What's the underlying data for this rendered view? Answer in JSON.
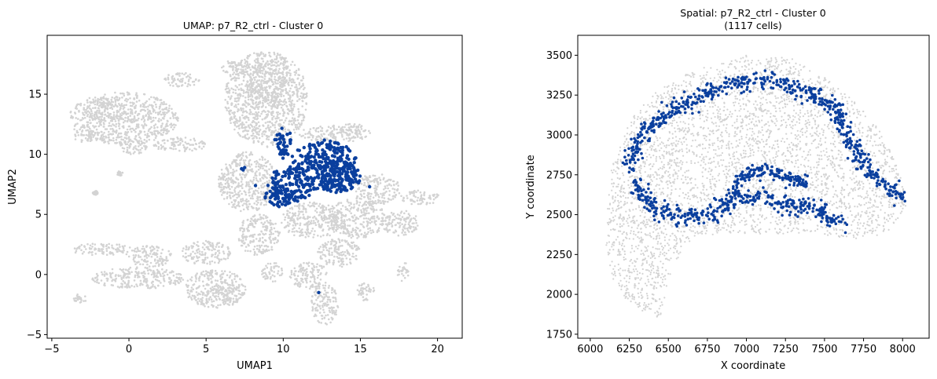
{
  "colors": {
    "background_points": "#d3d3d3",
    "highlight_points": "#0a3f9e",
    "axes": "#000000"
  },
  "chart_data": [
    {
      "type": "scatter",
      "title": "UMAP: p7_R2_ctrl - Cluster 0",
      "subtitle": "",
      "xlabel": "UMAP1",
      "ylabel": "UMAP2",
      "xlim": [
        -5.3,
        21.6
      ],
      "ylim": [
        -5.3,
        19.9
      ],
      "xticks": [
        -5,
        0,
        5,
        10,
        15,
        20
      ],
      "yticks": [
        -5,
        0,
        5,
        10,
        15
      ],
      "grid": false,
      "legend": "none",
      "background_series": {
        "color": "#d3d3d3",
        "regions": [
          {
            "x": [
              -3.9,
              3.2
            ],
            "y": [
              10.8,
              15.2
            ]
          },
          {
            "x": [
              -2.8,
              -0.2
            ],
            "y": [
              12.6,
              14.8
            ]
          },
          {
            "x": [
              -3.6,
              -2.2
            ],
            "y": [
              11.0,
              12.0
            ]
          },
          {
            "x": [
              -0.6,
              1.2
            ],
            "y": [
              10.0,
              11.2
            ]
          },
          {
            "x": [
              2.2,
              4.6
            ],
            "y": [
              15.6,
              16.8
            ]
          },
          {
            "x": [
              6.0,
              8.0
            ],
            "y": [
              16.6,
              17.9
            ]
          },
          {
            "x": [
              6.2,
              11.6
            ],
            "y": [
              10.6,
              18.6
            ]
          },
          {
            "x": [
              7.6,
              10.2
            ],
            "y": [
              13.8,
              17.6
            ]
          },
          {
            "x": [
              1.6,
              5.0
            ],
            "y": [
              10.2,
              11.4
            ]
          },
          {
            "x": [
              5.8,
              9.6
            ],
            "y": [
              5.2,
              10.2
            ]
          },
          {
            "x": [
              11.0,
              15.8
            ],
            "y": [
              11.0,
              12.4
            ]
          },
          {
            "x": [
              13.6,
              15.2
            ],
            "y": [
              11.6,
              12.6
            ]
          },
          {
            "x": [
              14.6,
              17.6
            ],
            "y": [
              5.8,
              8.4
            ]
          },
          {
            "x": [
              17.6,
              20.2
            ],
            "y": [
              5.8,
              7.0
            ]
          },
          {
            "x": [
              7.0,
              9.8
            ],
            "y": [
              1.6,
              5.0
            ]
          },
          {
            "x": [
              9.8,
              14.0
            ],
            "y": [
              3.0,
              6.0
            ]
          },
          {
            "x": [
              13.0,
              16.6
            ],
            "y": [
              3.0,
              6.4
            ]
          },
          {
            "x": [
              16.4,
              18.8
            ],
            "y": [
              3.2,
              5.4
            ]
          },
          {
            "x": [
              12.2,
              15.0
            ],
            "y": [
              0.6,
              3.0
            ]
          },
          {
            "x": [
              -3.8,
              0.2
            ],
            "y": [
              1.6,
              2.6
            ]
          },
          {
            "x": [
              -0.2,
              2.8
            ],
            "y": [
              0.6,
              2.4
            ]
          },
          {
            "x": [
              3.4,
              6.6
            ],
            "y": [
              0.8,
              2.8
            ]
          },
          {
            "x": [
              -2.4,
              3.6
            ],
            "y": [
              -1.2,
              0.6
            ]
          },
          {
            "x": [
              3.6,
              7.6
            ],
            "y": [
              -2.8,
              0.4
            ]
          },
          {
            "x": [
              5.4,
              7.2
            ],
            "y": [
              -2.4,
              -0.6
            ]
          },
          {
            "x": [
              8.6,
              10.0
            ],
            "y": [
              -0.6,
              1.0
            ]
          },
          {
            "x": [
              10.4,
              13.0
            ],
            "y": [
              -1.2,
              1.0
            ]
          },
          {
            "x": [
              11.8,
              13.6
            ],
            "y": [
              -4.2,
              -0.8
            ]
          },
          {
            "x": [
              14.8,
              16.0
            ],
            "y": [
              -2.2,
              -0.6
            ]
          },
          {
            "x": [
              17.4,
              18.2
            ],
            "y": [
              -0.6,
              1.0
            ]
          },
          {
            "x": [
              -3.6,
              -2.6
            ],
            "y": [
              -2.4,
              -1.6
            ]
          },
          {
            "x": [
              -2.4,
              -2.0
            ],
            "y": [
              6.6,
              7.0
            ]
          },
          {
            "x": [
              -0.8,
              -0.4
            ],
            "y": [
              8.2,
              8.6
            ]
          }
        ]
      },
      "highlight_series": {
        "color": "#0a3f9e",
        "regions": [
          {
            "x": [
              10.4,
              14.8
            ],
            "y": [
              7.0,
              11.2
            ]
          },
          {
            "x": [
              12.0,
              15.0
            ],
            "y": [
              6.8,
              9.4
            ]
          },
          {
            "x": [
              9.0,
              12.0
            ],
            "y": [
              6.0,
              9.0
            ]
          },
          {
            "x": [
              8.8,
              10.8
            ],
            "y": [
              5.6,
              7.4
            ]
          },
          {
            "x": [
              9.4,
              10.6
            ],
            "y": [
              9.6,
              12.2
            ]
          }
        ],
        "outliers": [
          {
            "x": 7.3,
            "y": 8.8
          },
          {
            "x": 7.4,
            "y": 8.7
          },
          {
            "x": 7.5,
            "y": 8.9
          },
          {
            "x": 15.6,
            "y": 7.3
          },
          {
            "x": 12.3,
            "y": -1.5
          },
          {
            "x": 8.2,
            "y": 7.4
          }
        ]
      }
    },
    {
      "type": "scatter",
      "title": "Spatial: p7_R2_ctrl - Cluster 0",
      "subtitle": "(1117 cells)",
      "xlabel": "X coordinate",
      "ylabel": "Y coordinate",
      "xlim": [
        5920,
        8170
      ],
      "ylim": [
        1725,
        3625
      ],
      "xticks": [
        6000,
        6250,
        6500,
        6750,
        7000,
        7250,
        7500,
        7750,
        8000
      ],
      "yticks": [
        1750,
        2000,
        2250,
        2500,
        2750,
        3000,
        3250,
        3500
      ],
      "grid": false,
      "legend": "none",
      "background_series": {
        "color": "#d3d3d3",
        "description_shape": "crescent tissue section",
        "outer_boundary": [
          [
            6100,
            2300
          ],
          [
            6120,
            2750
          ],
          [
            6250,
            3100
          ],
          [
            6450,
            3300
          ],
          [
            6700,
            3420
          ],
          [
            7000,
            3500
          ],
          [
            7300,
            3480
          ],
          [
            7600,
            3300
          ],
          [
            7850,
            3050
          ],
          [
            8000,
            2750
          ],
          [
            8030,
            2550
          ],
          [
            7900,
            2370
          ],
          [
            7700,
            2350
          ],
          [
            7400,
            2380
          ],
          [
            7100,
            2380
          ],
          [
            6800,
            2380
          ],
          [
            6600,
            2300
          ],
          [
            6500,
            2100
          ],
          [
            6450,
            1850
          ],
          [
            6300,
            1900
          ],
          [
            6150,
            2050
          ]
        ]
      },
      "highlight_series": {
        "color": "#0a3f9e",
        "count": 1117,
        "bands": [
          {
            "path": [
              [
                6250,
                2800
              ],
              [
                6300,
                2950
              ],
              [
                6420,
                3080
              ],
              [
                6600,
                3200
              ],
              [
                6800,
                3280
              ],
              [
                7000,
                3330
              ],
              [
                7200,
                3340
              ],
              [
                7400,
                3270
              ],
              [
                7550,
                3180
              ],
              [
                7650,
                3020
              ],
              [
                7720,
                2870
              ],
              [
                7800,
                2750
              ],
              [
                7900,
                2680
              ],
              [
                8000,
                2600
              ]
            ],
            "spread": 55
          },
          {
            "path": [
              [
                6280,
                2700
              ],
              [
                6400,
                2550
              ],
              [
                6600,
                2480
              ],
              [
                6800,
                2520
              ],
              [
                6950,
                2600
              ],
              [
                7100,
                2620
              ],
              [
                7250,
                2560
              ],
              [
                7400,
                2550
              ],
              [
                7500,
                2500
              ],
              [
                7600,
                2430
              ]
            ],
            "spread": 55
          },
          {
            "path": [
              [
                6900,
                2650
              ],
              [
                7000,
                2760
              ],
              [
                7150,
                2780
              ],
              [
                7300,
                2730
              ],
              [
                7400,
                2680
              ]
            ],
            "spread": 45
          }
        ]
      }
    }
  ]
}
